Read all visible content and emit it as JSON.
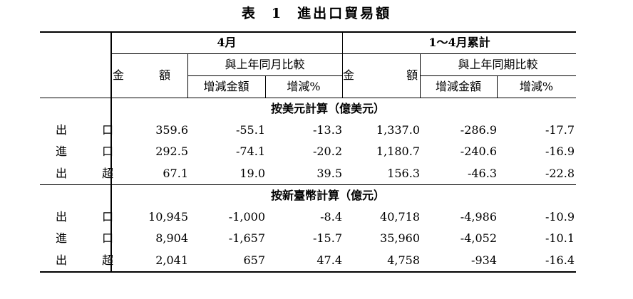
{
  "table": {
    "title": "表 1 進出口貿易額",
    "title_prefix": "表",
    "title_number": "1",
    "title_text": "進出口貿易額",
    "period_month": "4月",
    "period_cumulative": "1～4月累計",
    "col_amount": "金 額",
    "col_compare_month": "與上年同月比較",
    "col_compare_period": "與上年同期比較",
    "col_change_amount": "增減金額",
    "col_change_pct": "增減%",
    "section_usd": "按美元計算（億美元）",
    "section_ntd": "按新臺幣計算（億元）",
    "usd_rows": [
      {
        "label": "出 口",
        "m_amount": "359.6",
        "m_diff": "-55.1",
        "m_pct": "-13.3",
        "c_amount": "1,337.0",
        "c_diff": "-286.9",
        "c_pct": "-17.7"
      },
      {
        "label": "進 口",
        "m_amount": "292.5",
        "m_diff": "-74.1",
        "m_pct": "-20.2",
        "c_amount": "1,180.7",
        "c_diff": "-240.6",
        "c_pct": "-16.9"
      },
      {
        "label": "出 超",
        "m_amount": "67.1",
        "m_diff": "19.0",
        "m_pct": "39.5",
        "c_amount": "156.3",
        "c_diff": "-46.3",
        "c_pct": "-22.8"
      }
    ],
    "ntd_rows": [
      {
        "label": "出 口",
        "m_amount": "10,945",
        "m_diff": "-1,000",
        "m_pct": "-8.4",
        "c_amount": "40,718",
        "c_diff": "-4,986",
        "c_pct": "-10.9"
      },
      {
        "label": "進 口",
        "m_amount": "8,904",
        "m_diff": "-1,657",
        "m_pct": "-15.7",
        "c_amount": "35,960",
        "c_diff": "-4,052",
        "c_pct": "-10.1"
      },
      {
        "label": "出 超",
        "m_amount": "2,041",
        "m_diff": "657",
        "m_pct": "47.4",
        "c_amount": "4,758",
        "c_diff": "-934",
        "c_pct": "-16.4"
      }
    ]
  }
}
